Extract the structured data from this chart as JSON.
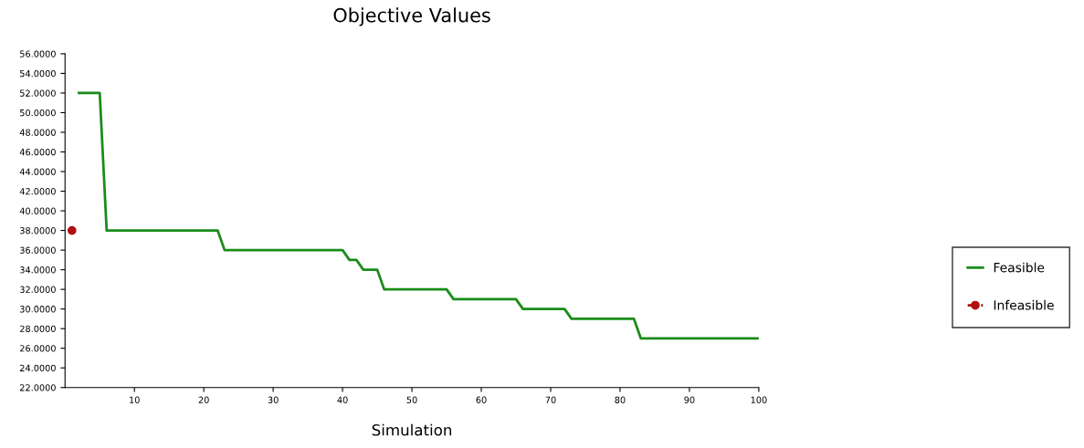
{
  "chart_data": {
    "type": "line",
    "title": "Objective Values",
    "xlabel": "Simulation",
    "xlim": [
      0,
      100
    ],
    "xticks": [
      10,
      20,
      30,
      40,
      50,
      60,
      70,
      80,
      90,
      100
    ],
    "ylim": [
      22,
      56
    ],
    "yticks": [
      {
        "value": 22,
        "label": "22.0000"
      },
      {
        "value": 24,
        "label": "24.0000"
      },
      {
        "value": 26,
        "label": "26.0000"
      },
      {
        "value": 28,
        "label": "28.0000"
      },
      {
        "value": 30,
        "label": "30.0000"
      },
      {
        "value": 32,
        "label": "32.0000"
      },
      {
        "value": 34,
        "label": "34.0000"
      },
      {
        "value": 36,
        "label": "36.0000"
      },
      {
        "value": 38,
        "label": "38.0000"
      },
      {
        "value": 40,
        "label": "40.0000"
      },
      {
        "value": 42,
        "label": "42.0000"
      },
      {
        "value": 44,
        "label": "44.0000"
      },
      {
        "value": 46,
        "label": "46.0000"
      },
      {
        "value": 48,
        "label": "48.0000"
      },
      {
        "value": 50,
        "label": "50.0000"
      },
      {
        "value": 52,
        "label": "52.0000"
      },
      {
        "value": 54,
        "label": "54.0000"
      },
      {
        "value": 56,
        "label": "56.0000"
      }
    ],
    "grid": false,
    "legend": "right",
    "series": [
      {
        "name": "Feasible",
        "color": "#1a8c1a",
        "line_style": "solid",
        "marker": "none",
        "x": [
          2,
          5,
          6,
          22,
          23,
          40,
          41,
          42,
          43,
          45,
          46,
          55,
          56,
          65,
          66,
          72,
          73,
          82,
          83,
          100
        ],
        "values": [
          52,
          52,
          38,
          38,
          36,
          36,
          35,
          35,
          34,
          34,
          32,
          32,
          31,
          31,
          30,
          30,
          29,
          29,
          27,
          27
        ]
      },
      {
        "name": "Infeasible",
        "color": "#b01010",
        "line_style": "dashed",
        "marker": "circle",
        "x": [
          1
        ],
        "values": [
          38
        ]
      }
    ]
  }
}
